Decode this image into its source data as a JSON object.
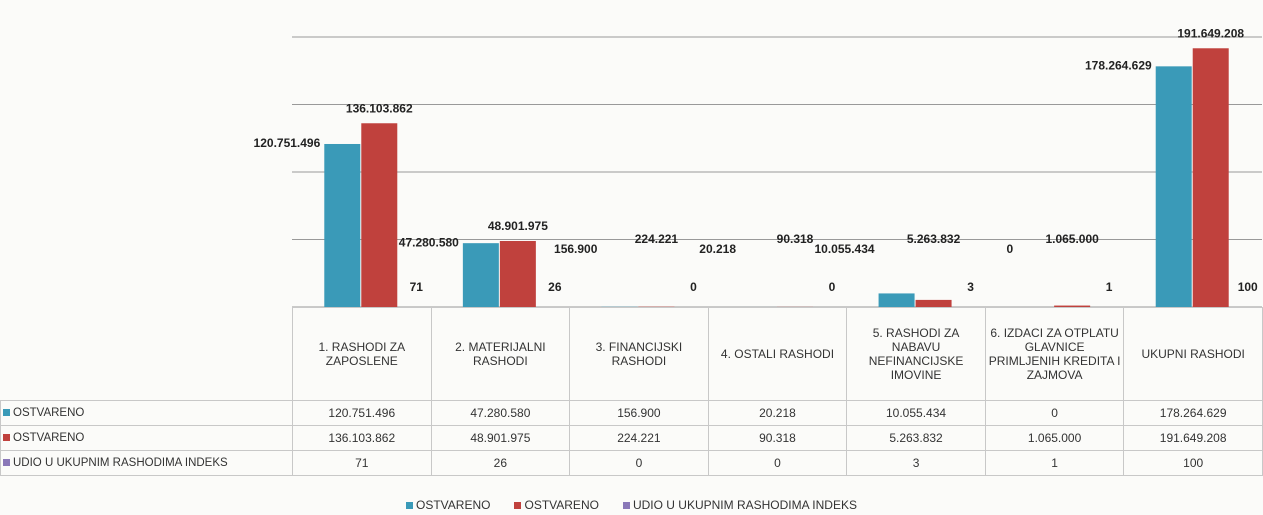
{
  "chart_data": {
    "type": "bar",
    "categories": [
      "1. RASHODI ZA ZAPOSLENE",
      "2. MATERIJALNI RASHODI",
      "3. FINANCIJSKI RASHODI",
      "4. OSTALI RASHODI",
      "5. RASHODI ZA NABAVU NEFINANCIJSKE IMOVINE",
      "6. IZDACI ZA OTPLATU GLAVNICE PRIMLJENIH KREDITA I ZAJMOVA",
      "UKUPNI RASHODI"
    ],
    "series": [
      {
        "name": "OSTVARENO",
        "color": "#3a9ab8",
        "values": [
          120751496,
          47280580,
          156900,
          20218,
          10055434,
          0,
          178264629
        ],
        "value_labels": [
          "120.751.496",
          "47.280.580",
          "156.900",
          "20.218",
          "10.055.434",
          "0",
          "178.264.629"
        ]
      },
      {
        "name": "OSTVARENO",
        "color": "#c0413d",
        "values": [
          136103862,
          48901975,
          224221,
          90318,
          5263832,
          1065000,
          191649208
        ],
        "value_labels": [
          "136.103.862",
          "48.901.975",
          "224.221",
          "90.318",
          "5.263.832",
          "1.065.000",
          "191.649.208"
        ]
      },
      {
        "name": "UDIO U UKUPNIM RASHODIMA INDEKS",
        "color": "#8a78b8",
        "values": [
          71,
          26,
          0,
          0,
          3,
          1,
          100
        ]
      }
    ],
    "ylim": [
      0,
      200000000
    ],
    "yticks": [
      0,
      50000000,
      100000000,
      150000000,
      200000000
    ],
    "grid": true,
    "tick_labels": false,
    "legend": "bottom"
  }
}
